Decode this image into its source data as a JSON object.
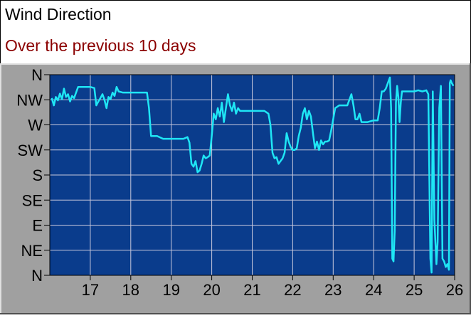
{
  "header": {
    "title": "Wind Direction",
    "subtitle": "Over the previous 10 days"
  },
  "colors": {
    "panel": "#a0a0a0",
    "plot_bg": "#0a3c8c",
    "line": "#1fe6f5",
    "grid": "#c8c8dc",
    "subtitle": "#8b0000"
  },
  "chart_data": {
    "type": "line",
    "title": "Wind Direction",
    "subtitle": "Over the previous 10 days",
    "xlabel": "",
    "ylabel": "",
    "x_ticks": [
      17,
      18,
      19,
      20,
      21,
      22,
      23,
      24,
      25,
      26
    ],
    "y_ticks": [
      "N",
      "NE",
      "E",
      "SE",
      "S",
      "SW",
      "W",
      "NW",
      "N"
    ],
    "xlim": [
      16.0,
      26.0
    ],
    "ylim": [
      0,
      360
    ],
    "grid": true,
    "series": [
      {
        "points": [
          [
            16.05,
            318
          ],
          [
            16.1,
            305
          ],
          [
            16.15,
            320
          ],
          [
            16.2,
            314
          ],
          [
            16.25,
            326
          ],
          [
            16.3,
            316
          ],
          [
            16.35,
            335
          ],
          [
            16.4,
            320
          ],
          [
            16.45,
            325
          ],
          [
            16.5,
            312
          ],
          [
            16.55,
            322
          ],
          [
            16.6,
            318
          ],
          [
            16.7,
            338
          ],
          [
            16.8,
            338
          ],
          [
            16.9,
            338
          ],
          [
            17.0,
            338
          ],
          [
            17.1,
            336
          ],
          [
            17.15,
            305
          ],
          [
            17.2,
            312
          ],
          [
            17.25,
            318
          ],
          [
            17.3,
            325
          ],
          [
            17.35,
            315
          ],
          [
            17.4,
            300
          ],
          [
            17.45,
            320
          ],
          [
            17.5,
            316
          ],
          [
            17.55,
            328
          ],
          [
            17.6,
            322
          ],
          [
            17.65,
            338
          ],
          [
            17.7,
            330
          ],
          [
            17.8,
            328
          ],
          [
            17.9,
            328
          ],
          [
            18.0,
            328
          ],
          [
            18.1,
            328
          ],
          [
            18.2,
            328
          ],
          [
            18.3,
            328
          ],
          [
            18.4,
            328
          ],
          [
            18.45,
            300
          ],
          [
            18.5,
            250
          ],
          [
            18.55,
            250
          ],
          [
            18.65,
            250
          ],
          [
            18.8,
            245
          ],
          [
            18.9,
            245
          ],
          [
            19.0,
            245
          ],
          [
            19.1,
            245
          ],
          [
            19.2,
            245
          ],
          [
            19.3,
            245
          ],
          [
            19.4,
            248
          ],
          [
            19.45,
            238
          ],
          [
            19.5,
            200
          ],
          [
            19.55,
            195
          ],
          [
            19.6,
            205
          ],
          [
            19.65,
            185
          ],
          [
            19.7,
            188
          ],
          [
            19.75,
            200
          ],
          [
            19.8,
            215
          ],
          [
            19.85,
            210
          ],
          [
            19.9,
            212
          ],
          [
            19.95,
            215
          ],
          [
            20.0,
            250
          ],
          [
            20.05,
            290
          ],
          [
            20.1,
            280
          ],
          [
            20.15,
            300
          ],
          [
            20.2,
            285
          ],
          [
            20.25,
            310
          ],
          [
            20.3,
            275
          ],
          [
            20.35,
            300
          ],
          [
            20.4,
            325
          ],
          [
            20.45,
            305
          ],
          [
            20.5,
            295
          ],
          [
            20.55,
            310
          ],
          [
            20.6,
            290
          ],
          [
            20.65,
            300
          ],
          [
            20.7,
            295
          ],
          [
            20.8,
            295
          ],
          [
            20.9,
            295
          ],
          [
            21.0,
            295
          ],
          [
            21.1,
            295
          ],
          [
            21.2,
            295
          ],
          [
            21.3,
            295
          ],
          [
            21.4,
            290
          ],
          [
            21.45,
            270
          ],
          [
            21.5,
            220
          ],
          [
            21.55,
            210
          ],
          [
            21.6,
            212
          ],
          [
            21.65,
            200
          ],
          [
            21.7,
            205
          ],
          [
            21.75,
            210
          ],
          [
            21.8,
            220
          ],
          [
            21.85,
            255
          ],
          [
            21.9,
            240
          ],
          [
            21.95,
            230
          ],
          [
            22.0,
            225
          ],
          [
            22.05,
            225
          ],
          [
            22.1,
            228
          ],
          [
            22.15,
            250
          ],
          [
            22.2,
            265
          ],
          [
            22.25,
            290
          ],
          [
            22.3,
            300
          ],
          [
            22.35,
            280
          ],
          [
            22.4,
            295
          ],
          [
            22.45,
            285
          ],
          [
            22.5,
            255
          ],
          [
            22.55,
            228
          ],
          [
            22.6,
            240
          ],
          [
            22.65,
            225
          ],
          [
            22.7,
            242
          ],
          [
            22.75,
            235
          ],
          [
            22.8,
            240
          ],
          [
            22.85,
            240
          ],
          [
            22.9,
            242
          ],
          [
            22.95,
            260
          ],
          [
            23.0,
            280
          ],
          [
            23.05,
            300
          ],
          [
            23.15,
            305
          ],
          [
            23.25,
            305
          ],
          [
            23.35,
            305
          ],
          [
            23.45,
            325
          ],
          [
            23.5,
            305
          ],
          [
            23.55,
            280
          ],
          [
            23.6,
            280
          ],
          [
            23.65,
            290
          ],
          [
            23.7,
            275
          ],
          [
            23.75,
            275
          ],
          [
            23.85,
            275
          ],
          [
            24.0,
            278
          ],
          [
            24.05,
            278
          ],
          [
            24.1,
            278
          ],
          [
            24.15,
            300
          ],
          [
            24.2,
            330
          ],
          [
            24.25,
            330
          ],
          [
            24.3,
            335
          ],
          [
            24.35,
            345
          ],
          [
            24.4,
            355
          ],
          [
            24.43,
            300
          ],
          [
            24.46,
            30
          ],
          [
            24.49,
            25
          ],
          [
            24.52,
            80
          ],
          [
            24.55,
            310
          ],
          [
            24.58,
            340
          ],
          [
            24.61,
            320
          ],
          [
            24.64,
            275
          ],
          [
            24.67,
            310
          ],
          [
            24.7,
            330
          ],
          [
            24.8,
            330
          ],
          [
            24.9,
            330
          ],
          [
            25.0,
            330
          ],
          [
            25.1,
            332
          ],
          [
            25.2,
            330
          ],
          [
            25.3,
            332
          ],
          [
            25.35,
            325
          ],
          [
            25.4,
            30
          ],
          [
            25.43,
            5
          ],
          [
            25.46,
            330
          ],
          [
            25.5,
            100
          ],
          [
            25.55,
            20
          ],
          [
            25.58,
            60
          ],
          [
            25.62,
            300
          ],
          [
            25.66,
            340
          ],
          [
            25.7,
            30
          ],
          [
            25.74,
            25
          ],
          [
            25.78,
            15
          ],
          [
            25.82,
            20
          ],
          [
            25.86,
            10
          ],
          [
            25.88,
            345
          ],
          [
            25.9,
            350
          ],
          [
            25.93,
            345
          ],
          [
            25.97,
            340
          ]
        ]
      }
    ]
  }
}
